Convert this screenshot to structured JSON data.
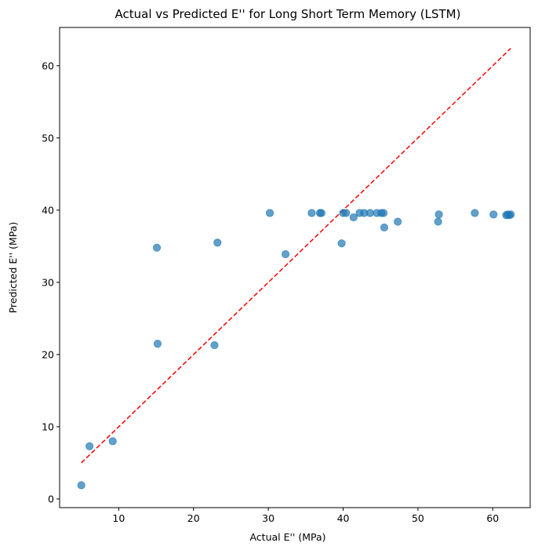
{
  "chart_data": {
    "type": "scatter",
    "title": "Actual vs Predicted E'' for Long Short Term Memory (LSTM)",
    "xlabel": "Actual E'' (MPa)",
    "ylabel": "Predicted E'' (MPa)",
    "xlim": [
      2.1,
      65.0
    ],
    "ylim": [
      -1.2,
      65.3
    ],
    "xticks": [
      10,
      20,
      30,
      40,
      50,
      60
    ],
    "yticks": [
      0,
      10,
      20,
      30,
      40,
      50,
      60
    ],
    "grid": false,
    "point_color": "#1f77b4",
    "point_alpha": 0.7,
    "reference_line": {
      "style": "dashed",
      "color": "#ff0000",
      "from": [
        5.0,
        5.0
      ],
      "to": [
        62.4,
        62.4
      ]
    },
    "points": [
      {
        "x": 5.0,
        "y": 1.9
      },
      {
        "x": 6.1,
        "y": 7.3
      },
      {
        "x": 9.2,
        "y": 8.0
      },
      {
        "x": 15.1,
        "y": 34.8
      },
      {
        "x": 15.2,
        "y": 21.5
      },
      {
        "x": 22.8,
        "y": 21.3
      },
      {
        "x": 23.2,
        "y": 35.5
      },
      {
        "x": 30.2,
        "y": 39.6
      },
      {
        "x": 32.3,
        "y": 33.9
      },
      {
        "x": 35.8,
        "y": 39.6
      },
      {
        "x": 36.9,
        "y": 39.6
      },
      {
        "x": 37.1,
        "y": 39.6
      },
      {
        "x": 39.8,
        "y": 35.4
      },
      {
        "x": 40.0,
        "y": 39.6
      },
      {
        "x": 40.4,
        "y": 39.6
      },
      {
        "x": 41.4,
        "y": 39.0
      },
      {
        "x": 42.2,
        "y": 39.6
      },
      {
        "x": 42.8,
        "y": 39.6
      },
      {
        "x": 43.6,
        "y": 39.6
      },
      {
        "x": 44.5,
        "y": 39.6
      },
      {
        "x": 45.1,
        "y": 39.6
      },
      {
        "x": 45.4,
        "y": 39.6
      },
      {
        "x": 45.5,
        "y": 37.6
      },
      {
        "x": 47.3,
        "y": 38.4
      },
      {
        "x": 52.7,
        "y": 38.4
      },
      {
        "x": 52.8,
        "y": 39.4
      },
      {
        "x": 57.6,
        "y": 39.6
      },
      {
        "x": 60.1,
        "y": 39.4
      },
      {
        "x": 61.8,
        "y": 39.3
      },
      {
        "x": 62.0,
        "y": 39.4
      },
      {
        "x": 62.2,
        "y": 39.3
      },
      {
        "x": 62.4,
        "y": 39.4
      }
    ]
  }
}
